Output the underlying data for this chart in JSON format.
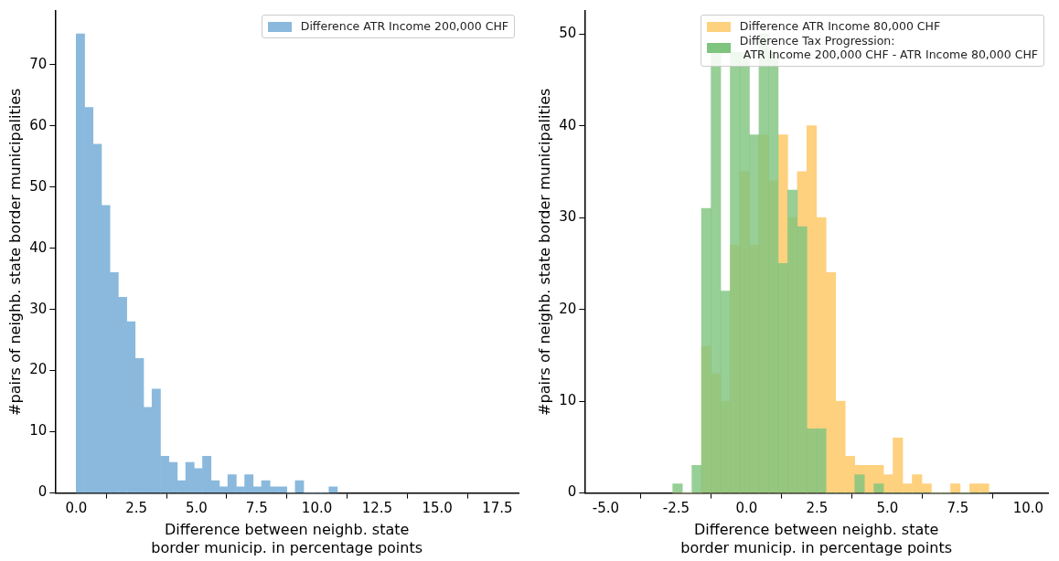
{
  "chart_data": [
    {
      "type": "histogram",
      "xlabel": "Difference between neighb. state\nborder municip. in percentage points",
      "ylabel": "#pairs of neighb. state border municipalities",
      "bins": [
        0,
        0.35,
        0.7,
        1.05,
        1.4,
        1.75,
        2.1,
        2.45,
        2.8,
        3.15,
        3.5,
        3.85,
        4.2,
        4.55,
        4.9,
        5.25,
        5.6,
        5.95,
        6.3,
        6.65,
        7,
        7.35,
        7.7,
        8.05,
        8.4,
        8.75,
        9.1,
        9.45,
        9.8,
        10.15,
        10.5,
        10.85
      ],
      "series": [
        {
          "name": "Difference ATR Income 200,000 CHF",
          "color": "#8ab9dd",
          "values": [
            75,
            63,
            57,
            47,
            36,
            32,
            28,
            22,
            14,
            17,
            6,
            5,
            2,
            5,
            4,
            6,
            2,
            1,
            3,
            1,
            3,
            1,
            2,
            1,
            1,
            0,
            2,
            0,
            0,
            0,
            1
          ]
        }
      ],
      "xlim": [
        -0.875,
        18.375
      ],
      "xticks": [
        {
          "value": 0,
          "label": "0.0"
        },
        {
          "value": 2.5,
          "label": "2.5"
        },
        {
          "value": 5,
          "label": "5.0"
        },
        {
          "value": 7.5,
          "label": "7.5"
        },
        {
          "value": 10,
          "label": "10.0"
        },
        {
          "value": 12.5,
          "label": "12.5"
        },
        {
          "value": 15,
          "label": "15.0"
        },
        {
          "value": 17.5,
          "label": "17.5"
        }
      ],
      "ylim": [
        0,
        78.75
      ],
      "yticks": [
        0,
        10,
        20,
        30,
        40,
        50,
        60,
        70
      ],
      "grid": false,
      "legend": "top right"
    },
    {
      "type": "histogram",
      "xlabel": "Difference between neighb. state\nborder municip. in percentage points",
      "ylabel": "#pairs of neighb. state border municipalities",
      "bins": [
        -2.62,
        -2.28,
        -1.94,
        -1.6,
        -1.26,
        -0.92,
        -0.58,
        -0.24,
        0.1,
        0.44,
        0.78,
        1.12,
        1.46,
        1.8,
        2.14,
        2.48,
        2.82,
        3.16,
        3.5,
        3.84,
        4.18,
        4.52,
        4.86,
        5.2,
        5.54,
        5.88,
        6.22,
        6.56,
        6.9,
        7.24,
        7.58,
        7.92,
        8.26,
        8.6
      ],
      "series": [
        {
          "name": "Difference ATR Income 80,000 CHF",
          "color": "#fed17f",
          "values": [
            0,
            0,
            0,
            16,
            13,
            10,
            27,
            35,
            27,
            39,
            34,
            39,
            30,
            35,
            40,
            30,
            24,
            10,
            4,
            3,
            3,
            3,
            2,
            6,
            1,
            2,
            1,
            0,
            0,
            1,
            0,
            1,
            1
          ]
        },
        {
          "name": "Difference Tax Progression:\n ATR Income 200,000 CHF - ATR Income 80,000 CHF",
          "color": "#7fc47f",
          "values": [
            1,
            0,
            3,
            31,
            48,
            22,
            48,
            48,
            39,
            50,
            48,
            25,
            33,
            29,
            7,
            7,
            0,
            0,
            0,
            2,
            0,
            1,
            0,
            0,
            0,
            0,
            0,
            0,
            0,
            0,
            0,
            0,
            0
          ]
        }
      ],
      "xlim": [
        -5.75,
        10.7
      ],
      "xticks": [
        {
          "value": -5,
          "label": "-5.0"
        },
        {
          "value": -2.5,
          "label": "-2.5"
        },
        {
          "value": 0,
          "label": "0.0"
        },
        {
          "value": 2.5,
          "label": "2.5"
        },
        {
          "value": 5,
          "label": "5.0"
        },
        {
          "value": 7.5,
          "label": "7.5"
        },
        {
          "value": 10,
          "label": "10.0"
        }
      ],
      "ylim": [
        0,
        52.5
      ],
      "yticks": [
        0,
        10,
        20,
        30,
        40,
        50
      ],
      "grid": false,
      "legend": "top right"
    }
  ]
}
